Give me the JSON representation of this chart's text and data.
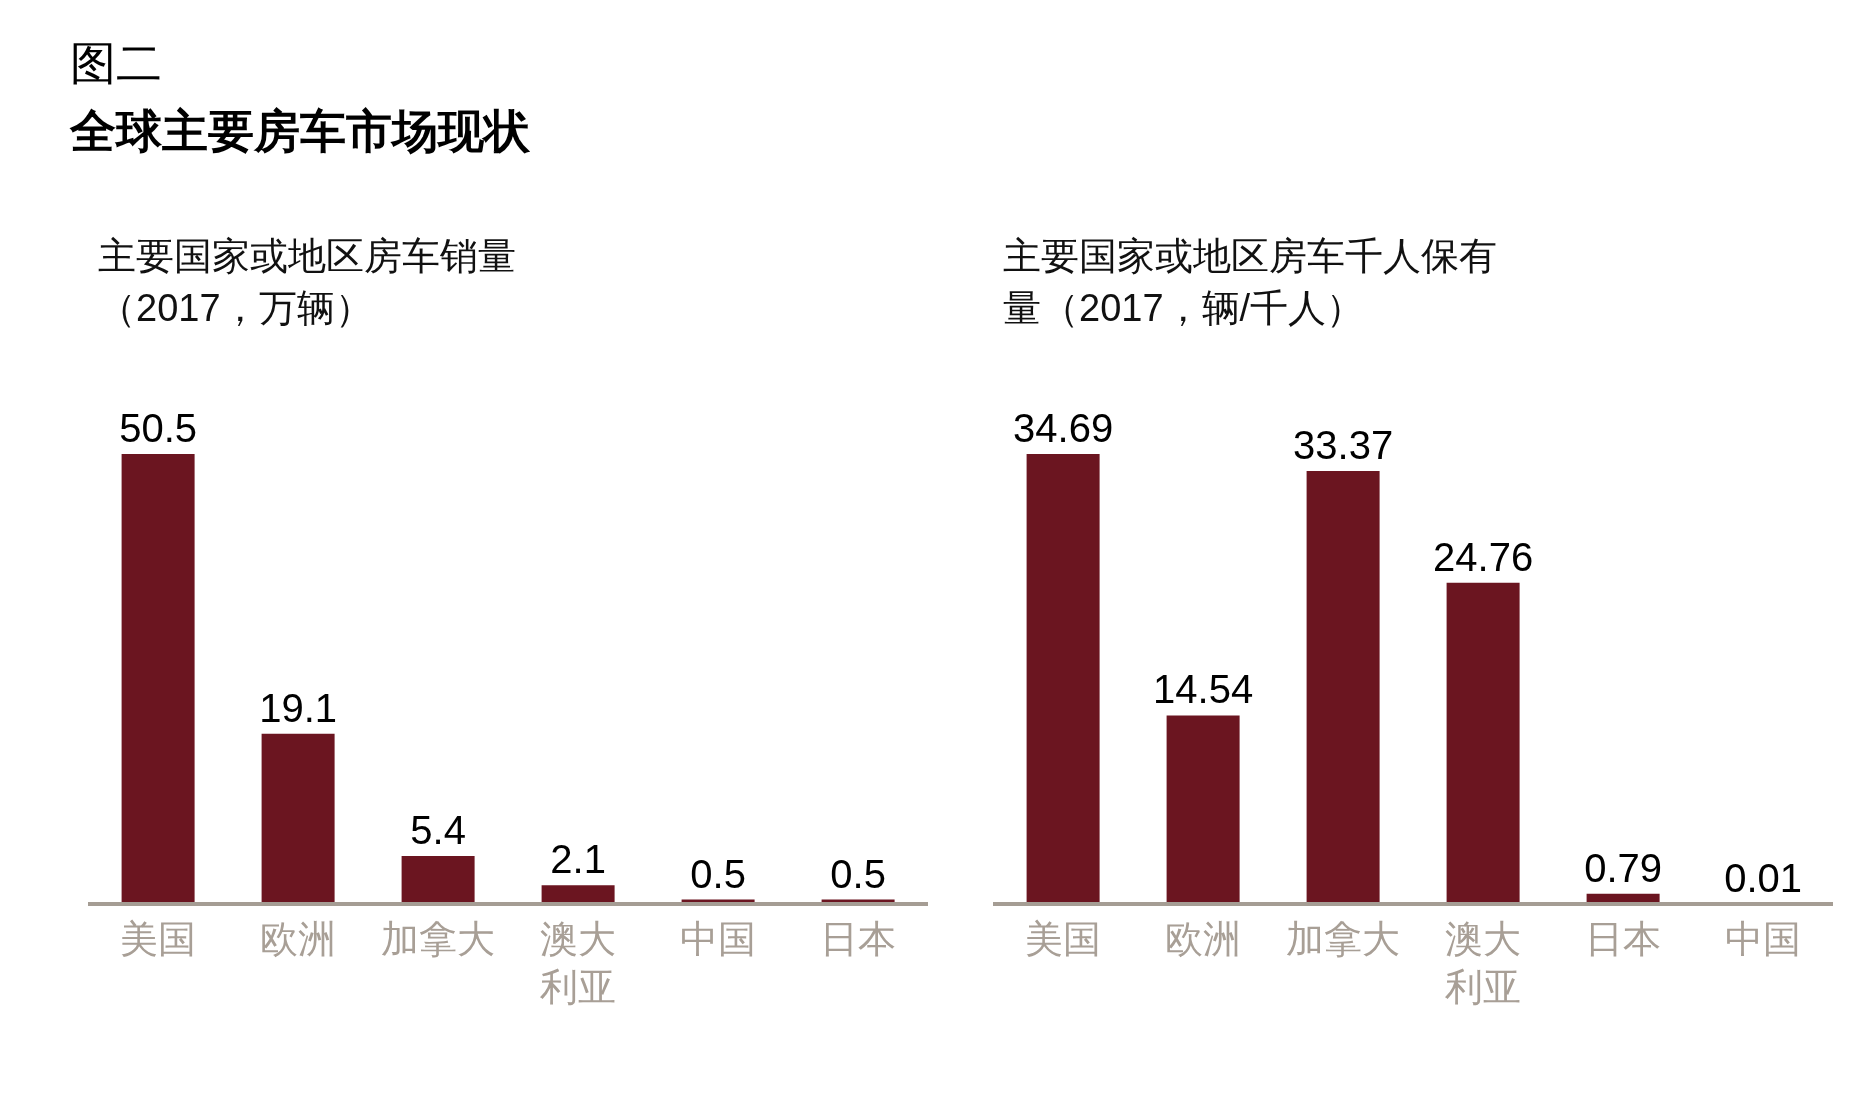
{
  "chart_data": [
    {
      "type": "bar",
      "title": "主要国家或地区房车销量（2017，万辆）",
      "annotations": [
        "图二",
        "全球主要房车市场现状"
      ],
      "categories": [
        "美国",
        "欧洲",
        "加拿大",
        "澳大利亚",
        "中国",
        "日本"
      ],
      "values": [
        50.5,
        19.1,
        5.4,
        2.1,
        0.5,
        0.5
      ],
      "color": "#6b1520",
      "data_labels": true
    },
    {
      "type": "bar",
      "title": "主要国家或地区房车千人保有量（2017，辆/千人）",
      "categories": [
        "美国",
        "欧洲",
        "加拿大",
        "澳大利亚",
        "日本",
        "中国"
      ],
      "values": [
        34.69,
        14.54,
        33.37,
        24.76,
        0.79,
        0.01
      ],
      "color": "#6b1520",
      "data_labels": true
    }
  ]
}
